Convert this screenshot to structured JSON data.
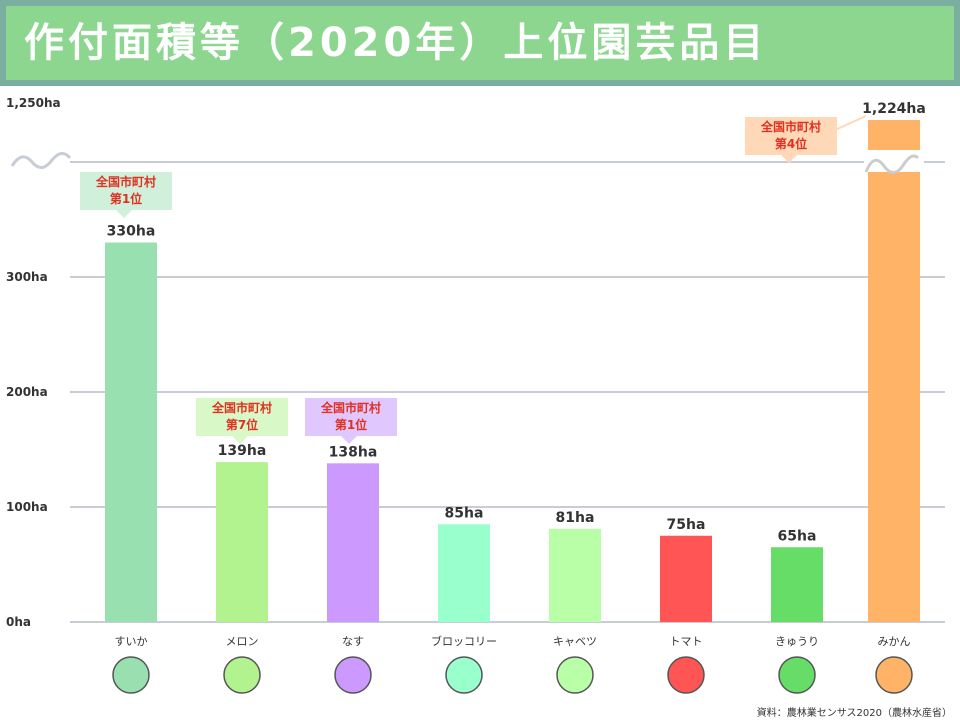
{
  "title": "作付面積等（2020年）上位園芸品目",
  "source": "資料：農林業センサス2020（農林水産省）",
  "chart_data": {
    "type": "bar",
    "title": "作付面積等（2020年）上位園芸品目",
    "categories": [
      "すいか",
      "メロン",
      "なす",
      "ブロッコリー",
      "キャベツ",
      "トマト",
      "きゅうり",
      "みかん"
    ],
    "values": [
      330,
      139,
      138,
      85,
      81,
      75,
      65,
      1224
    ],
    "data_labels": [
      "330ha",
      "139ha",
      "138ha",
      "85ha",
      "81ha",
      "75ha",
      "65ha",
      "1,224ha"
    ],
    "colors": [
      "#98e0b0",
      "#b3f38f",
      "#cc99ff",
      "#99ffcc",
      "#b8ffa8",
      "#ff5555",
      "#66dd66",
      "#ffb366"
    ],
    "y_ticks": [
      {
        "value": 0,
        "label": "0ha"
      },
      {
        "value": 100,
        "label": "100ha"
      },
      {
        "value": 200,
        "label": "200ha"
      },
      {
        "value": 300,
        "label": "300ha"
      },
      {
        "value": 1250,
        "label": "1,250ha"
      }
    ],
    "axis_break": true,
    "grid": true,
    "annotations": [
      {
        "category": "すいか",
        "line1": "全国市町村",
        "line2": "第1位",
        "color": "#d0f0dc"
      },
      {
        "category": "メロン",
        "line1": "全国市町村",
        "line2": "第7位",
        "color": "#d8f8c8"
      },
      {
        "category": "なす",
        "line1": "全国市町村",
        "line2": "第1位",
        "color": "#e0c8ff"
      },
      {
        "category": "みかん",
        "line1": "全国市町村",
        "line2": "第4位",
        "color": "#ffd8b8"
      }
    ],
    "icons": [
      "watermelon-icon",
      "melon-icon",
      "eggplant-icon",
      "broccoli-icon",
      "cabbage-icon",
      "tomato-icon",
      "cucumber-icon",
      "mandarin-orange-icon"
    ]
  }
}
